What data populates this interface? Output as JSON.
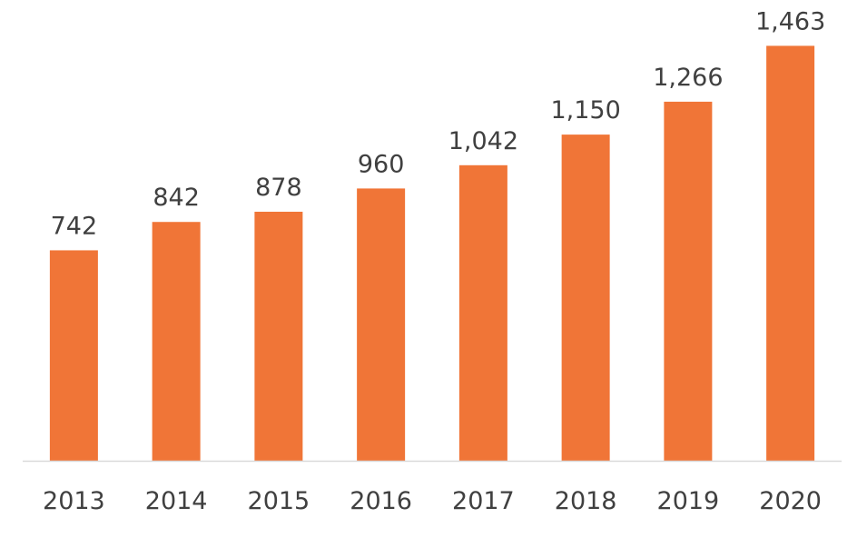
{
  "chart_data": {
    "type": "bar",
    "categories": [
      "2013",
      "2014",
      "2015",
      "2016",
      "2017",
      "2018",
      "2019",
      "2020"
    ],
    "values": [
      742,
      842,
      878,
      960,
      1042,
      1150,
      1266,
      1463
    ],
    "value_labels": [
      "742",
      "842",
      "878",
      "960",
      "1,042",
      "1,150",
      "1,266",
      "1,463"
    ],
    "title": "",
    "xlabel": "",
    "ylabel": "",
    "ylim": [
      0,
      1490
    ],
    "grid": false,
    "legend": "none",
    "bar_color": "#F07537",
    "axis_color": "#D9D9D9"
  }
}
